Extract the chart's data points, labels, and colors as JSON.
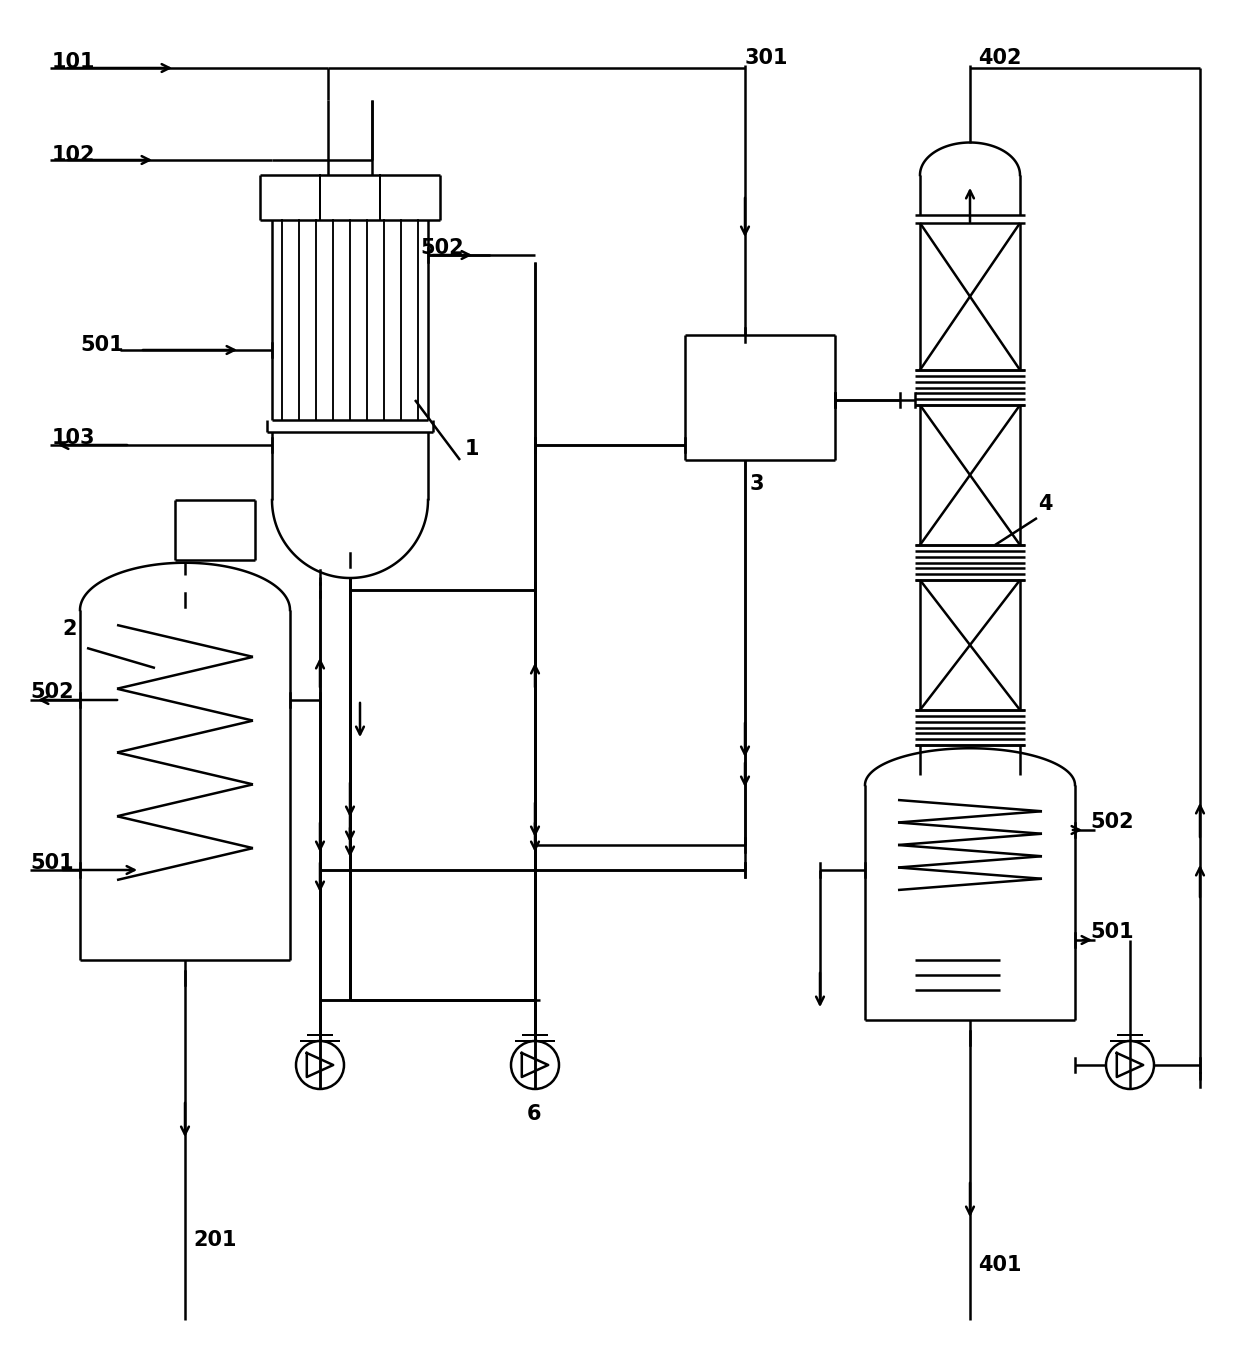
{
  "background": "#ffffff",
  "line_color": "#000000",
  "line_width": 1.8,
  "fig_width": 12.4,
  "fig_height": 13.46
}
